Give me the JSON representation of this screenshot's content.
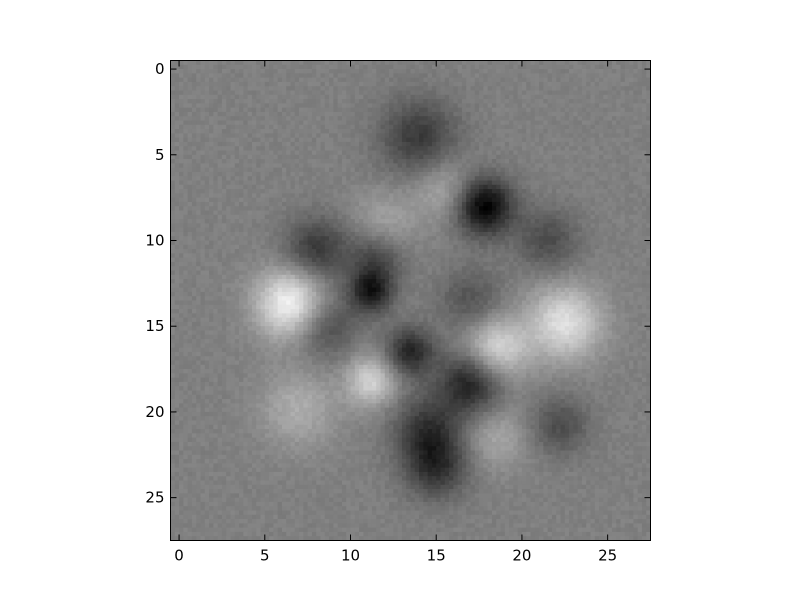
{
  "figure": {
    "background": "#ffffff"
  },
  "chart_data": {
    "type": "heatmap",
    "title": "",
    "xlabel": "",
    "ylabel": "",
    "colormap": "gray",
    "grid": false,
    "legend": "none",
    "shape": [
      28,
      28
    ],
    "xlim": [
      -0.5,
      27.5
    ],
    "ylim": [
      27.5,
      -0.5
    ],
    "x_ticks": [
      0,
      5,
      10,
      15,
      20,
      25
    ],
    "y_ticks": [
      0,
      5,
      10,
      15,
      20,
      25
    ],
    "x_tick_labels": [
      "0",
      "5",
      "10",
      "15",
      "20",
      "25"
    ],
    "y_tick_labels": [
      "0",
      "5",
      "10",
      "15",
      "20",
      "25"
    ],
    "value_range": [
      -1.0,
      1.0
    ],
    "background_value": 0.0,
    "features": [
      {
        "row": 4.0,
        "col": 14.0,
        "sigma": 1.6,
        "amp": -0.55
      },
      {
        "row": 8.0,
        "col": 17.8,
        "sigma": 1.2,
        "amp": -1.0
      },
      {
        "row": 7.0,
        "col": 15.5,
        "sigma": 1.3,
        "amp": 0.35
      },
      {
        "row": 9.0,
        "col": 12.0,
        "sigma": 1.3,
        "amp": 0.3
      },
      {
        "row": 10.5,
        "col": 8.0,
        "sigma": 1.3,
        "amp": -0.55
      },
      {
        "row": 11.0,
        "col": 11.5,
        "sigma": 1.2,
        "amp": -0.45
      },
      {
        "row": 10.0,
        "col": 21.5,
        "sigma": 1.3,
        "amp": -0.4
      },
      {
        "row": 13.7,
        "col": 6.5,
        "sigma": 1.4,
        "amp": 0.95
      },
      {
        "row": 13.0,
        "col": 11.2,
        "sigma": 0.9,
        "amp": -0.75
      },
      {
        "row": 13.5,
        "col": 17.0,
        "sigma": 1.3,
        "amp": -0.35
      },
      {
        "row": 14.8,
        "col": 22.5,
        "sigma": 1.5,
        "amp": 0.75
      },
      {
        "row": 15.0,
        "col": 8.5,
        "sigma": 1.3,
        "amp": -0.45
      },
      {
        "row": 16.5,
        "col": 13.5,
        "sigma": 1.0,
        "amp": -0.7
      },
      {
        "row": 16.3,
        "col": 18.5,
        "sigma": 1.3,
        "amp": 0.7
      },
      {
        "row": 18.3,
        "col": 17.0,
        "sigma": 1.3,
        "amp": -0.75
      },
      {
        "row": 18.2,
        "col": 11.2,
        "sigma": 1.0,
        "amp": 0.65
      },
      {
        "row": 19.8,
        "col": 7.0,
        "sigma": 1.6,
        "amp": 0.35
      },
      {
        "row": 21.0,
        "col": 14.5,
        "sigma": 1.4,
        "amp": -0.55
      },
      {
        "row": 23.2,
        "col": 15.0,
        "sigma": 1.3,
        "amp": -0.6
      },
      {
        "row": 20.8,
        "col": 22.2,
        "sigma": 1.2,
        "amp": -0.4
      },
      {
        "row": 21.5,
        "col": 18.5,
        "sigma": 1.3,
        "amp": 0.3
      }
    ]
  }
}
